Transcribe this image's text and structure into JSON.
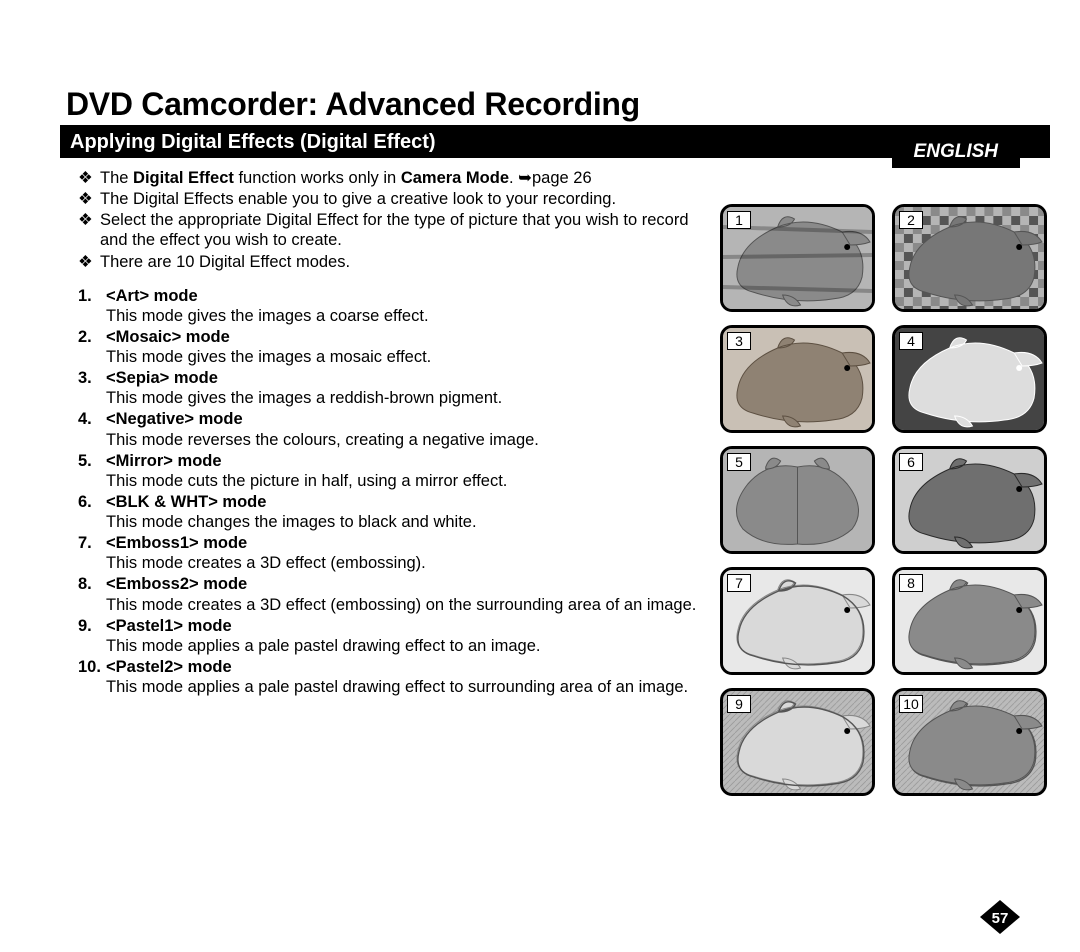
{
  "lang_label": "ENGLISH",
  "main_title": "DVD Camcorder: Advanced Recording",
  "section_title": "Applying Digital Effects (Digital Effect)",
  "bullets": [
    {
      "pre": "The ",
      "b1": "Digital Effect",
      "mid": " function works only in ",
      "b2": "Camera Mode",
      "post": ". ➥page 26"
    },
    {
      "text": "The Digital Effects enable you to give a creative look to your recording."
    },
    {
      "text": "Select the appropriate Digital Effect for the type of picture that you wish to record and the effect you wish to create."
    },
    {
      "text": "There are 10 Digital Effect modes."
    }
  ],
  "modes": [
    {
      "n": "1.",
      "label": "<Art> mode",
      "desc": "This mode gives the images a coarse effect."
    },
    {
      "n": "2.",
      "label": "<Mosaic> mode",
      "desc": "This mode gives the images a mosaic effect."
    },
    {
      "n": "3.",
      "label": "<Sepia> mode",
      "desc": "This mode gives the images a reddish-brown pigment."
    },
    {
      "n": "4.",
      "label": "<Negative> mode",
      "desc": "This mode reverses the colours, creating a negative image."
    },
    {
      "n": "5.",
      "label": "<Mirror> mode",
      "desc": "This mode cuts the picture in half, using a mirror effect."
    },
    {
      "n": "6.",
      "label": "<BLK & WHT> mode",
      "desc": "This mode changes the images to black and white."
    },
    {
      "n": "7.",
      "label": "<Emboss1> mode",
      "desc": "This mode creates a 3D effect (embossing)."
    },
    {
      "n": "8.",
      "label": "<Emboss2> mode",
      "desc": "This mode creates a 3D effect (embossing) on the surrounding area of an image."
    },
    {
      "n": "9.",
      "label": "<Pastel1> mode",
      "desc": "This mode applies a pale pastel drawing effect to an image."
    },
    {
      "n": "10.",
      "label": "<Pastel2> mode",
      "desc": "This mode applies a pale pastel drawing effect to surrounding area of an image."
    }
  ],
  "thumbs": [
    {
      "n": "1",
      "effect": "art"
    },
    {
      "n": "2",
      "effect": "mosaic"
    },
    {
      "n": "3",
      "effect": "sepia"
    },
    {
      "n": "4",
      "effect": "negative"
    },
    {
      "n": "5",
      "effect": "mirror"
    },
    {
      "n": "6",
      "effect": "bw"
    },
    {
      "n": "7",
      "effect": "emboss1"
    },
    {
      "n": "8",
      "effect": "emboss2"
    },
    {
      "n": "9",
      "effect": "pastel1"
    },
    {
      "n": "10",
      "effect": "pastel2"
    }
  ],
  "colors": {
    "water_gray": "#b5b5b5",
    "body_gray": "#8a8a8a",
    "body_dark": "#555555",
    "light": "#e8e8e8"
  },
  "page_number": "57"
}
